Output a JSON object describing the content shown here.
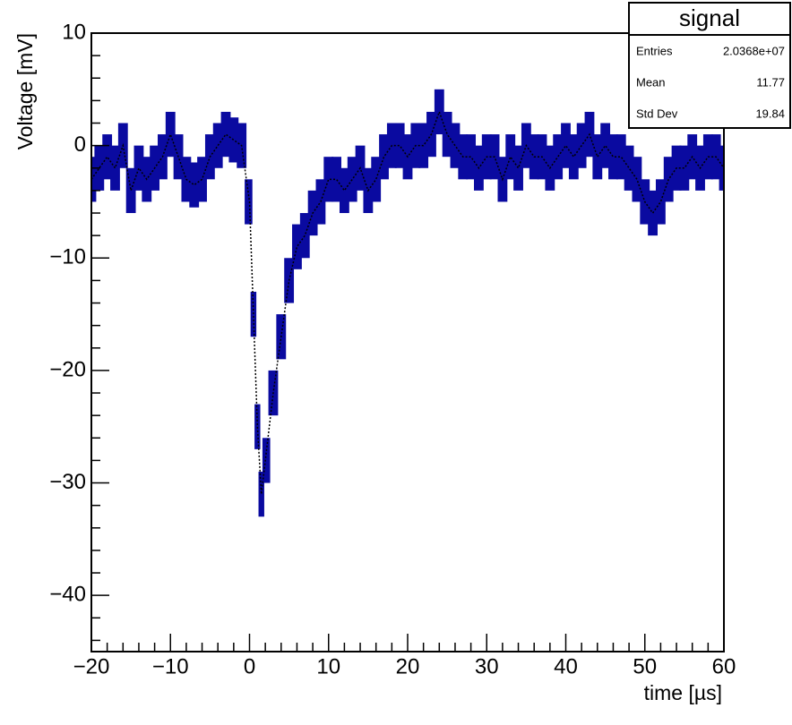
{
  "chart_data": {
    "type": "line",
    "xlabel": "time [µs]",
    "ylabel": "Voltage [mV]",
    "xlim": [
      -20,
      60
    ],
    "ylim": [
      -45,
      10
    ],
    "xticks": [
      {
        "value": -20,
        "label": "−20"
      },
      {
        "value": -10,
        "label": "−10"
      },
      0,
      10,
      20,
      30,
      40,
      50,
      60
    ],
    "yticks": [
      {
        "value": -40,
        "label": "−40"
      },
      {
        "value": -30,
        "label": "−30"
      },
      {
        "value": -20,
        "label": "−20"
      },
      {
        "value": -10,
        "label": "−10"
      },
      0,
      10
    ],
    "minor_divisions": 5,
    "series": [
      {
        "name": "signal",
        "color": "#000000",
        "error_color": "#0a0aa0",
        "x": [
          -20,
          -19,
          -18,
          -17,
          -16,
          -15,
          -14,
          -13,
          -12,
          -11,
          -10,
          -9,
          -8,
          -7,
          -6,
          -5,
          -4,
          -3,
          -2,
          -1,
          0,
          0.5,
          1,
          1.5,
          2,
          3,
          4,
          5,
          6,
          7,
          8,
          9,
          10,
          11,
          12,
          13,
          14,
          15,
          16,
          17,
          18,
          19,
          20,
          21,
          22,
          23,
          24,
          25,
          26,
          27,
          28,
          29,
          30,
          31,
          32,
          33,
          34,
          35,
          36,
          37,
          38,
          39,
          40,
          41,
          42,
          43,
          44,
          45,
          46,
          47,
          48,
          49,
          50,
          51,
          52,
          53,
          54,
          55,
          56,
          57,
          58,
          59,
          60
        ],
        "values": [
          -3,
          -2,
          -1,
          -2,
          0,
          -4,
          -2,
          -3,
          -2,
          -1,
          1,
          -1,
          -3,
          -3.5,
          -3,
          -1,
          0,
          1,
          0.5,
          0,
          -5,
          -15,
          -25,
          -31,
          -28,
          -22,
          -17,
          -12,
          -9,
          -8,
          -6,
          -5,
          -3,
          -3,
          -4,
          -3,
          -2,
          -4,
          -3,
          -1,
          0,
          0,
          -1,
          0,
          0,
          1,
          3,
          1,
          0,
          -1,
          -1,
          -2,
          -1,
          -1,
          -3,
          -1,
          -2,
          0,
          -1,
          -1,
          -2,
          -1,
          0,
          -1,
          0,
          1,
          -1,
          0,
          -1,
          -1,
          -2,
          -3,
          -5,
          -6,
          -5,
          -3,
          -2,
          -2,
          -1,
          -2,
          -1,
          -1,
          -2
        ],
        "errors": [
          2,
          2,
          2,
          2,
          2,
          2,
          2,
          2,
          2,
          2,
          2,
          2,
          2,
          2,
          2,
          2,
          2,
          2,
          2,
          2,
          2,
          2,
          2,
          2,
          2,
          2,
          2,
          2,
          2,
          2,
          2,
          2,
          2,
          2,
          2,
          2,
          2,
          2,
          2,
          2,
          2,
          2,
          2,
          2,
          2,
          2,
          2,
          2,
          2,
          2,
          2,
          2,
          2,
          2,
          2,
          2,
          2,
          2,
          2,
          2,
          2,
          2,
          2,
          2,
          2,
          2,
          2,
          2,
          2,
          2,
          2,
          2,
          2,
          2,
          2,
          2,
          2,
          2,
          2,
          2,
          2,
          2,
          2
        ]
      }
    ],
    "stats": {
      "title": "signal",
      "rows": [
        [
          "Entries",
          "2.0368e+07"
        ],
        [
          "Mean",
          "11.77"
        ],
        [
          "Std Dev",
          "19.84"
        ]
      ]
    }
  }
}
